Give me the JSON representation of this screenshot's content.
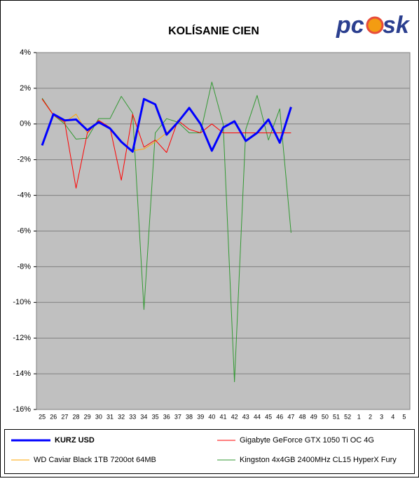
{
  "logo": {
    "left": "pc",
    "right": "sk"
  },
  "chart_data": {
    "type": "line",
    "title": "KOLÍSANIE CIEN",
    "categories": [
      "25",
      "26",
      "27",
      "28",
      "29",
      "30",
      "31",
      "32",
      "33",
      "34",
      "35",
      "36",
      "37",
      "38",
      "39",
      "40",
      "41",
      "42",
      "43",
      "44",
      "45",
      "46",
      "47",
      "48",
      "49",
      "50",
      "51",
      "52",
      "1",
      "2",
      "3",
      "4",
      "5"
    ],
    "ylim": [
      -16,
      4
    ],
    "yticks": [
      {
        "value": 4,
        "label": "4%"
      },
      {
        "value": 2,
        "label": "2%"
      },
      {
        "value": 0,
        "label": "0%"
      },
      {
        "value": -2,
        "label": "-2%"
      },
      {
        "value": -4,
        "label": "-4%"
      },
      {
        "value": -6,
        "label": "-6%"
      },
      {
        "value": -8,
        "label": "-8%"
      },
      {
        "value": -10,
        "label": "-10%"
      },
      {
        "value": -12,
        "label": "-12%"
      },
      {
        "value": -14,
        "label": "-14%"
      },
      {
        "value": -16,
        "label": "-16%"
      }
    ],
    "grid": true,
    "series": [
      {
        "name": "KURZ USD",
        "color": "#0000ff",
        "width": 3,
        "values": [
          -1.2,
          0.55,
          0.2,
          0.25,
          -0.35,
          0.1,
          -0.25,
          -1.0,
          -1.55,
          1.4,
          1.1,
          -0.6,
          0.1,
          0.9,
          0.0,
          -1.5,
          -0.2,
          0.15,
          -0.95,
          -0.5,
          0.25,
          -1.05,
          0.95,
          null,
          null,
          null,
          null,
          null,
          null,
          null,
          null,
          null,
          null
        ]
      },
      {
        "name": "Gigabyte GeForce GTX 1050 Ti OC 4G",
        "color": "#ff0000",
        "width": 1,
        "values": [
          1.4,
          0.5,
          0.1,
          -3.6,
          -0.5,
          0.2,
          -0.2,
          -3.15,
          0.55,
          -1.3,
          -0.9,
          -1.6,
          0.2,
          -0.3,
          -0.5,
          0.0,
          -0.5,
          -0.5,
          -0.5,
          -0.5,
          -0.5,
          -0.5,
          -0.5,
          null,
          null,
          null,
          null,
          null,
          null,
          null,
          null,
          null,
          null
        ]
      },
      {
        "name": "WD Caviar Black 1TB 7200ot 64MB",
        "color": "#ffa500",
        "width": 1,
        "values": [
          1.4,
          0.5,
          0.1,
          0.55,
          -0.5,
          0.2,
          -0.2,
          -1.0,
          -1.5,
          -1.4,
          -1.0,
          -0.5,
          0.1,
          0.9,
          0.0,
          -1.5,
          -0.2,
          0.15,
          -0.95,
          -0.5,
          0.25,
          -1.05,
          0.95,
          null,
          null,
          null,
          null,
          null,
          null,
          null,
          null,
          null,
          null
        ]
      },
      {
        "name": "Kingston 4x4GB 2400MHz CL15 HyperX Fury",
        "color": "#339933",
        "width": 1,
        "values": [
          1.45,
          0.5,
          0.0,
          -0.85,
          -0.8,
          0.3,
          0.3,
          1.55,
          0.6,
          -10.4,
          -0.5,
          0.3,
          0.1,
          -0.5,
          -0.5,
          2.35,
          0.0,
          -14.45,
          -0.3,
          1.6,
          -0.9,
          0.85,
          -6.1,
          null,
          null,
          null,
          null,
          null,
          null,
          null,
          null,
          null,
          null
        ]
      }
    ]
  }
}
